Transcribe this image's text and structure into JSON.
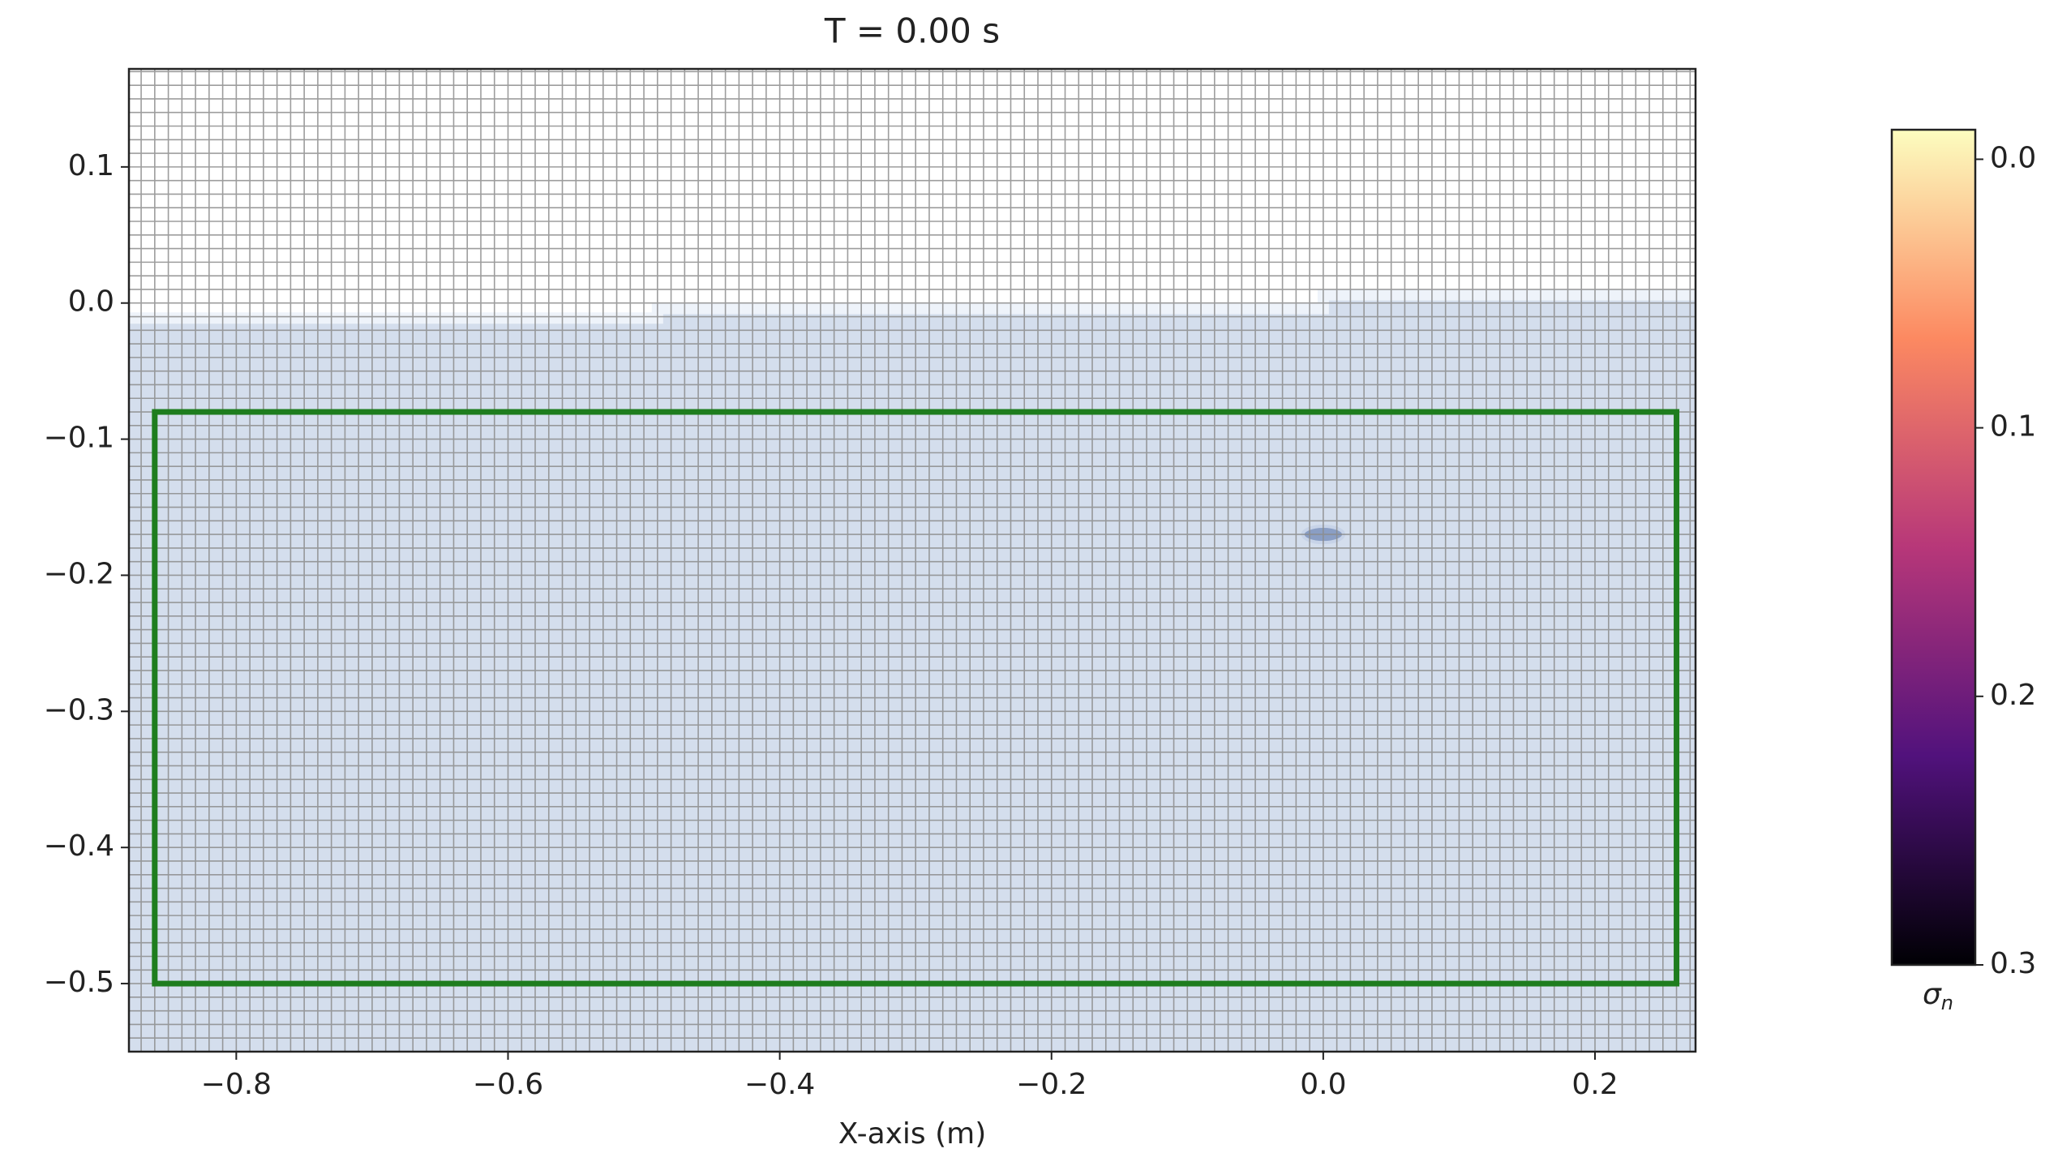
{
  "chart_data": {
    "type": "mesh",
    "title": "T =   0.00 s",
    "xlabel": "X-axis (m)",
    "xlim": [
      -0.879,
      0.274
    ],
    "ylim": [
      -0.55,
      0.172
    ],
    "xticks": [
      {
        "value": -0.8,
        "label": "−0.8"
      },
      {
        "value": -0.6,
        "label": "−0.6"
      },
      {
        "value": -0.4,
        "label": "−0.4"
      },
      {
        "value": -0.2,
        "label": "−0.2"
      },
      {
        "value": 0,
        "label": "0.0"
      },
      0.2
    ],
    "yticks": [
      0.1,
      {
        "value": 0,
        "label": "0.0"
      },
      {
        "value": -0.1,
        "label": "−0.1"
      },
      {
        "value": -0.2,
        "label": "−0.2"
      },
      {
        "value": -0.3,
        "label": "−0.3"
      },
      {
        "value": -0.4,
        "label": "−0.4"
      },
      {
        "value": -0.5,
        "label": "−0.5"
      }
    ],
    "mesh_spacing": 0.01,
    "mesh_color": "#8c8c8c",
    "fluid_color": "#d4deed",
    "surface_color": "#eef3fa",
    "free_surface": {
      "x": [
        -0.879,
        -0.49,
        -0.49,
        0.0,
        0.0,
        0.274
      ],
      "y": [
        -0.011,
        -0.011,
        -0.004,
        -0.004,
        0.006,
        0.006
      ]
    },
    "box": {
      "x": [
        -0.86,
        0.26
      ],
      "y": [
        -0.5,
        -0.08
      ],
      "color": "#1e7d1e"
    },
    "particle": {
      "x": 0.0,
      "y": -0.17,
      "size": [
        0.03,
        0.012
      ],
      "color": "#8a9ec4"
    },
    "colorbar": {
      "label": "σ",
      "label_sub": "n",
      "clim": [
        -0.011,
        0.3
      ],
      "reversed": true,
      "ticks": [
        {
          "value": 0,
          "label": "0.0"
        },
        0.1,
        0.2,
        0.3
      ],
      "colormap": [
        "#fcfdbf",
        "#fc8961",
        "#b73779",
        "#51127c",
        "#000004"
      ]
    }
  }
}
